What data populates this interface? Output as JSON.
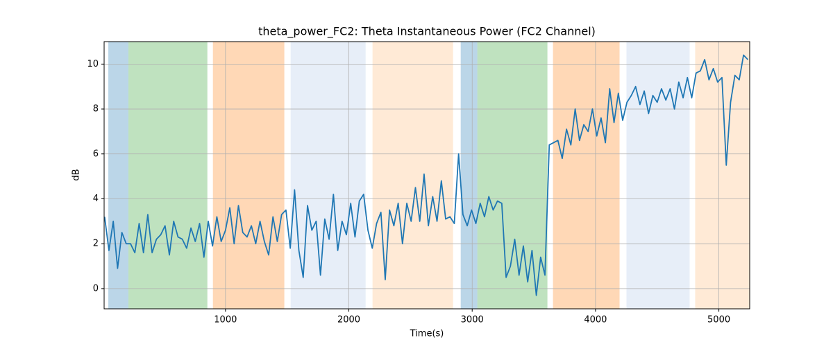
{
  "chart_data": {
    "type": "line",
    "title": "theta_power_FC2: Theta Instantaneous Power (FC2 Channel)",
    "x_label": "Time(s)",
    "y_label": "dB",
    "xlim": [
      16,
      5250
    ],
    "ylim": [
      -0.9,
      11
    ],
    "xticks": [
      1000,
      2000,
      3000,
      4000,
      5000
    ],
    "yticks": [
      0,
      2,
      4,
      6,
      8,
      10
    ],
    "grid": true,
    "spans": [
      {
        "start": 50,
        "end": 213,
        "color": "#1f77b4",
        "alpha": 0.3
      },
      {
        "start": 213,
        "end": 853,
        "color": "#2ca02c",
        "alpha": 0.3
      },
      {
        "start": 898,
        "end": 1477,
        "color": "#ff7f0e",
        "alpha": 0.3
      },
      {
        "start": 1528,
        "end": 2136,
        "color": "#aec7e8",
        "alpha": 0.3
      },
      {
        "start": 2192,
        "end": 2845,
        "color": "#ffbb78",
        "alpha": 0.3
      },
      {
        "start": 2907,
        "end": 3042,
        "color": "#1f77b4",
        "alpha": 0.3
      },
      {
        "start": 3042,
        "end": 3610,
        "color": "#2ca02c",
        "alpha": 0.3
      },
      {
        "start": 3655,
        "end": 4195,
        "color": "#ff7f0e",
        "alpha": 0.3
      },
      {
        "start": 4251,
        "end": 4763,
        "color": "#aec7e8",
        "alpha": 0.3
      },
      {
        "start": 4808,
        "end": 5250,
        "color": "#ffbb78",
        "alpha": 0.3
      }
    ],
    "x": [
      20,
      55,
      90,
      125,
      160,
      195,
      230,
      265,
      300,
      335,
      370,
      405,
      440,
      475,
      510,
      545,
      580,
      615,
      650,
      685,
      720,
      755,
      790,
      825,
      860,
      895,
      930,
      965,
      1000,
      1035,
      1070,
      1105,
      1140,
      1175,
      1210,
      1245,
      1280,
      1315,
      1350,
      1385,
      1420,
      1455,
      1490,
      1525,
      1560,
      1595,
      1630,
      1665,
      1700,
      1735,
      1770,
      1805,
      1840,
      1875,
      1910,
      1945,
      1980,
      2015,
      2050,
      2085,
      2120,
      2155,
      2190,
      2225,
      2260,
      2295,
      2330,
      2365,
      2400,
      2435,
      2470,
      2505,
      2540,
      2575,
      2610,
      2645,
      2680,
      2715,
      2750,
      2785,
      2820,
      2855,
      2890,
      2925,
      2960,
      2995,
      3030,
      3065,
      3100,
      3135,
      3170,
      3205,
      3240,
      3275,
      3310,
      3345,
      3380,
      3415,
      3450,
      3485,
      3520,
      3555,
      3590,
      3625,
      3660,
      3695,
      3730,
      3765,
      3800,
      3835,
      3870,
      3905,
      3940,
      3975,
      4010,
      4045,
      4080,
      4115,
      4150,
      4185,
      4220,
      4255,
      4290,
      4325,
      4360,
      4395,
      4430,
      4465,
      4500,
      4535,
      4570,
      4605,
      4640,
      4675,
      4710,
      4745,
      4780,
      4815,
      4850,
      4885,
      4920,
      4955,
      4990,
      5025,
      5060,
      5095,
      5130,
      5165,
      5200,
      5235
    ],
    "series": [
      {
        "color": "#1f77b4",
        "values": [
          3.2,
          1.7,
          3.0,
          0.9,
          2.5,
          2.0,
          2.0,
          1.6,
          2.9,
          1.6,
          3.3,
          1.6,
          2.2,
          2.4,
          2.8,
          1.5,
          3.0,
          2.3,
          2.2,
          1.8,
          2.7,
          2.1,
          2.9,
          1.4,
          3.0,
          1.9,
          3.2,
          2.1,
          2.6,
          3.6,
          2.0,
          3.7,
          2.5,
          2.3,
          2.8,
          2.0,
          3.0,
          2.1,
          1.5,
          3.2,
          2.1,
          3.3,
          3.5,
          1.8,
          4.4,
          1.7,
          0.5,
          3.7,
          2.6,
          3.0,
          0.6,
          3.1,
          2.2,
          4.2,
          1.7,
          3.0,
          2.4,
          3.8,
          2.3,
          3.9,
          4.2,
          2.6,
          1.8,
          2.9,
          3.4,
          0.4,
          3.5,
          2.8,
          3.8,
          2.0,
          3.8,
          3.0,
          4.5,
          3.0,
          5.1,
          2.8,
          4.1,
          3.0,
          4.8,
          3.1,
          3.2,
          2.9,
          6.0,
          3.3,
          2.8,
          3.5,
          2.9,
          3.8,
          3.2,
          4.1,
          3.5,
          3.9,
          3.8,
          0.5,
          1.0,
          2.2,
          0.6,
          1.9,
          0.3,
          1.7,
          -0.3,
          1.4,
          0.6,
          6.4,
          6.5,
          6.6,
          5.8,
          7.1,
          6.4,
          8.0,
          6.6,
          7.3,
          7.0,
          8.0,
          6.8,
          7.6,
          6.5,
          8.9,
          7.4,
          8.7,
          7.5,
          8.3,
          8.6,
          9.0,
          8.2,
          8.8,
          7.8,
          8.6,
          8.3,
          8.9,
          8.4,
          8.9,
          8.0,
          9.2,
          8.5,
          9.4,
          8.5,
          9.6,
          9.7,
          10.2,
          9.3,
          9.8,
          9.2,
          9.4,
          5.5,
          8.3,
          9.5,
          9.3,
          10.4,
          10.2
        ]
      }
    ]
  }
}
